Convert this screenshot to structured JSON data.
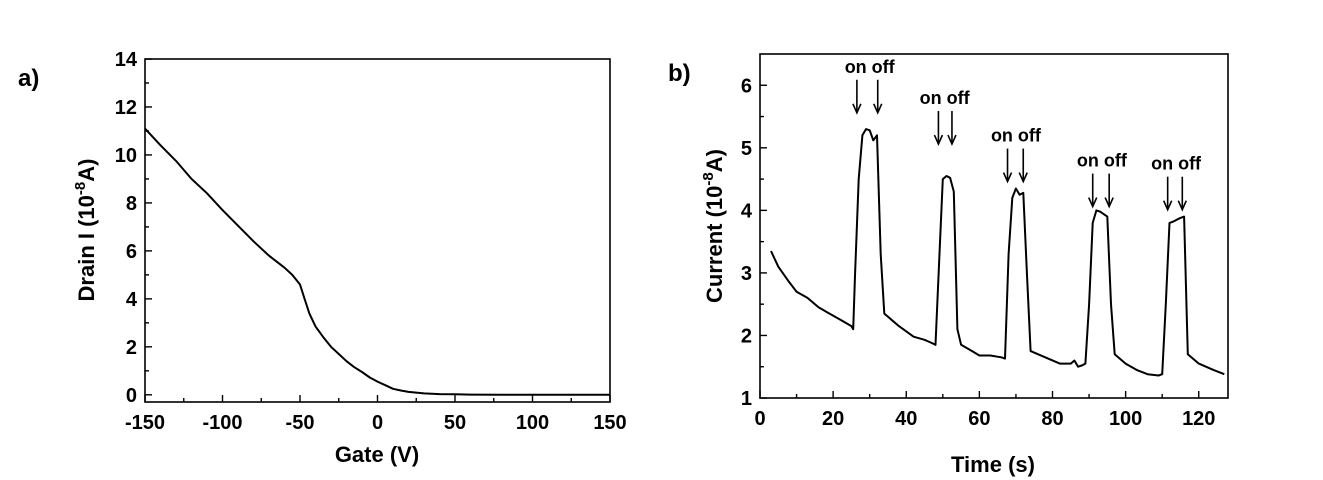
{
  "chart_data": [
    {
      "type": "line",
      "panel_label": "a)",
      "xlabel": "Gate (V)",
      "ylabel_main": "Drain I (10",
      "ylabel_exp": "-8",
      "ylabel_end": "A)",
      "xlim": [
        -150,
        150
      ],
      "ylim": [
        -0.3,
        14
      ],
      "xticks": [
        -150,
        -100,
        -50,
        0,
        50,
        100,
        150
      ],
      "yticks": [
        0,
        2,
        4,
        6,
        8,
        10,
        12,
        14
      ],
      "x": [
        -150,
        -140,
        -130,
        -120,
        -110,
        -100,
        -90,
        -80,
        -70,
        -60,
        -55,
        -50,
        -47,
        -44,
        -40,
        -35,
        -30,
        -25,
        -20,
        -15,
        -10,
        -5,
        0,
        5,
        10,
        15,
        20,
        30,
        40,
        50,
        60,
        80,
        100,
        120,
        150
      ],
      "y": [
        11.1,
        10.4,
        9.75,
        9.0,
        8.4,
        7.7,
        7.05,
        6.4,
        5.8,
        5.3,
        5.0,
        4.6,
        4.0,
        3.4,
        2.85,
        2.4,
        2.0,
        1.7,
        1.4,
        1.15,
        0.95,
        0.72,
        0.55,
        0.4,
        0.25,
        0.18,
        0.12,
        0.06,
        0.03,
        0.02,
        0.01,
        0.0,
        0.0,
        0.0,
        0.0
      ]
    },
    {
      "type": "line",
      "panel_label": "b)",
      "xlabel": "Time (s)",
      "ylabel_main": "Current (10",
      "ylabel_exp": "-8",
      "ylabel_end": "A)",
      "xlim": [
        0,
        128
      ],
      "ylim": [
        1,
        6.5
      ],
      "xticks": [
        0,
        20,
        40,
        60,
        80,
        100,
        120
      ],
      "xticklabels": [
        "0",
        "20",
        "40",
        "60",
        "80",
        "100",
        "120"
      ],
      "yticks": [
        1,
        2,
        3,
        4,
        5,
        6
      ],
      "x": [
        3,
        5,
        8,
        10,
        13,
        16,
        19,
        22,
        25,
        25.5,
        26,
        27,
        28,
        29,
        30,
        31,
        32,
        33,
        34,
        38,
        42,
        45,
        47,
        48,
        49,
        50,
        51,
        52,
        53,
        54,
        55,
        58,
        60,
        63,
        66,
        67,
        68,
        69,
        70,
        71,
        72,
        73,
        74,
        78,
        82,
        85,
        86,
        87,
        88,
        89,
        90,
        91,
        92,
        93,
        95,
        96,
        97,
        100,
        103,
        106,
        109,
        110,
        111,
        112,
        113,
        114,
        115,
        116,
        117,
        120,
        124,
        127
      ],
      "y": [
        3.35,
        3.1,
        2.85,
        2.7,
        2.6,
        2.45,
        2.35,
        2.25,
        2.15,
        2.1,
        3.0,
        4.5,
        5.2,
        5.3,
        5.28,
        5.12,
        5.2,
        3.3,
        2.35,
        2.15,
        1.98,
        1.93,
        1.88,
        1.85,
        3.2,
        4.5,
        4.55,
        4.52,
        4.3,
        2.1,
        1.85,
        1.75,
        1.68,
        1.68,
        1.65,
        1.63,
        3.3,
        4.2,
        4.35,
        4.25,
        4.28,
        3.0,
        1.75,
        1.65,
        1.55,
        1.55,
        1.6,
        1.5,
        1.52,
        1.55,
        2.5,
        3.8,
        4.0,
        3.98,
        3.9,
        2.5,
        1.7,
        1.55,
        1.45,
        1.38,
        1.36,
        1.38,
        2.5,
        3.8,
        3.82,
        3.85,
        3.88,
        3.9,
        1.7,
        1.55,
        1.45,
        1.38
      ],
      "annotations": [
        {
          "text": "on off",
          "x": 30,
          "y": 6.2,
          "arrows": [
            26.5,
            32.2
          ]
        },
        {
          "text": "on off",
          "x": 50.5,
          "y": 5.7,
          "arrows": [
            48.8,
            52.5
          ]
        },
        {
          "text": "on off",
          "x": 70,
          "y": 5.1,
          "arrows": [
            67.7,
            72
          ]
        },
        {
          "text": "on off",
          "x": 93.5,
          "y": 4.7,
          "arrows": [
            91,
            95.5
          ]
        },
        {
          "text": "on off",
          "x": 113.8,
          "y": 4.65,
          "arrows": [
            111.5,
            115.5
          ]
        }
      ]
    }
  ]
}
